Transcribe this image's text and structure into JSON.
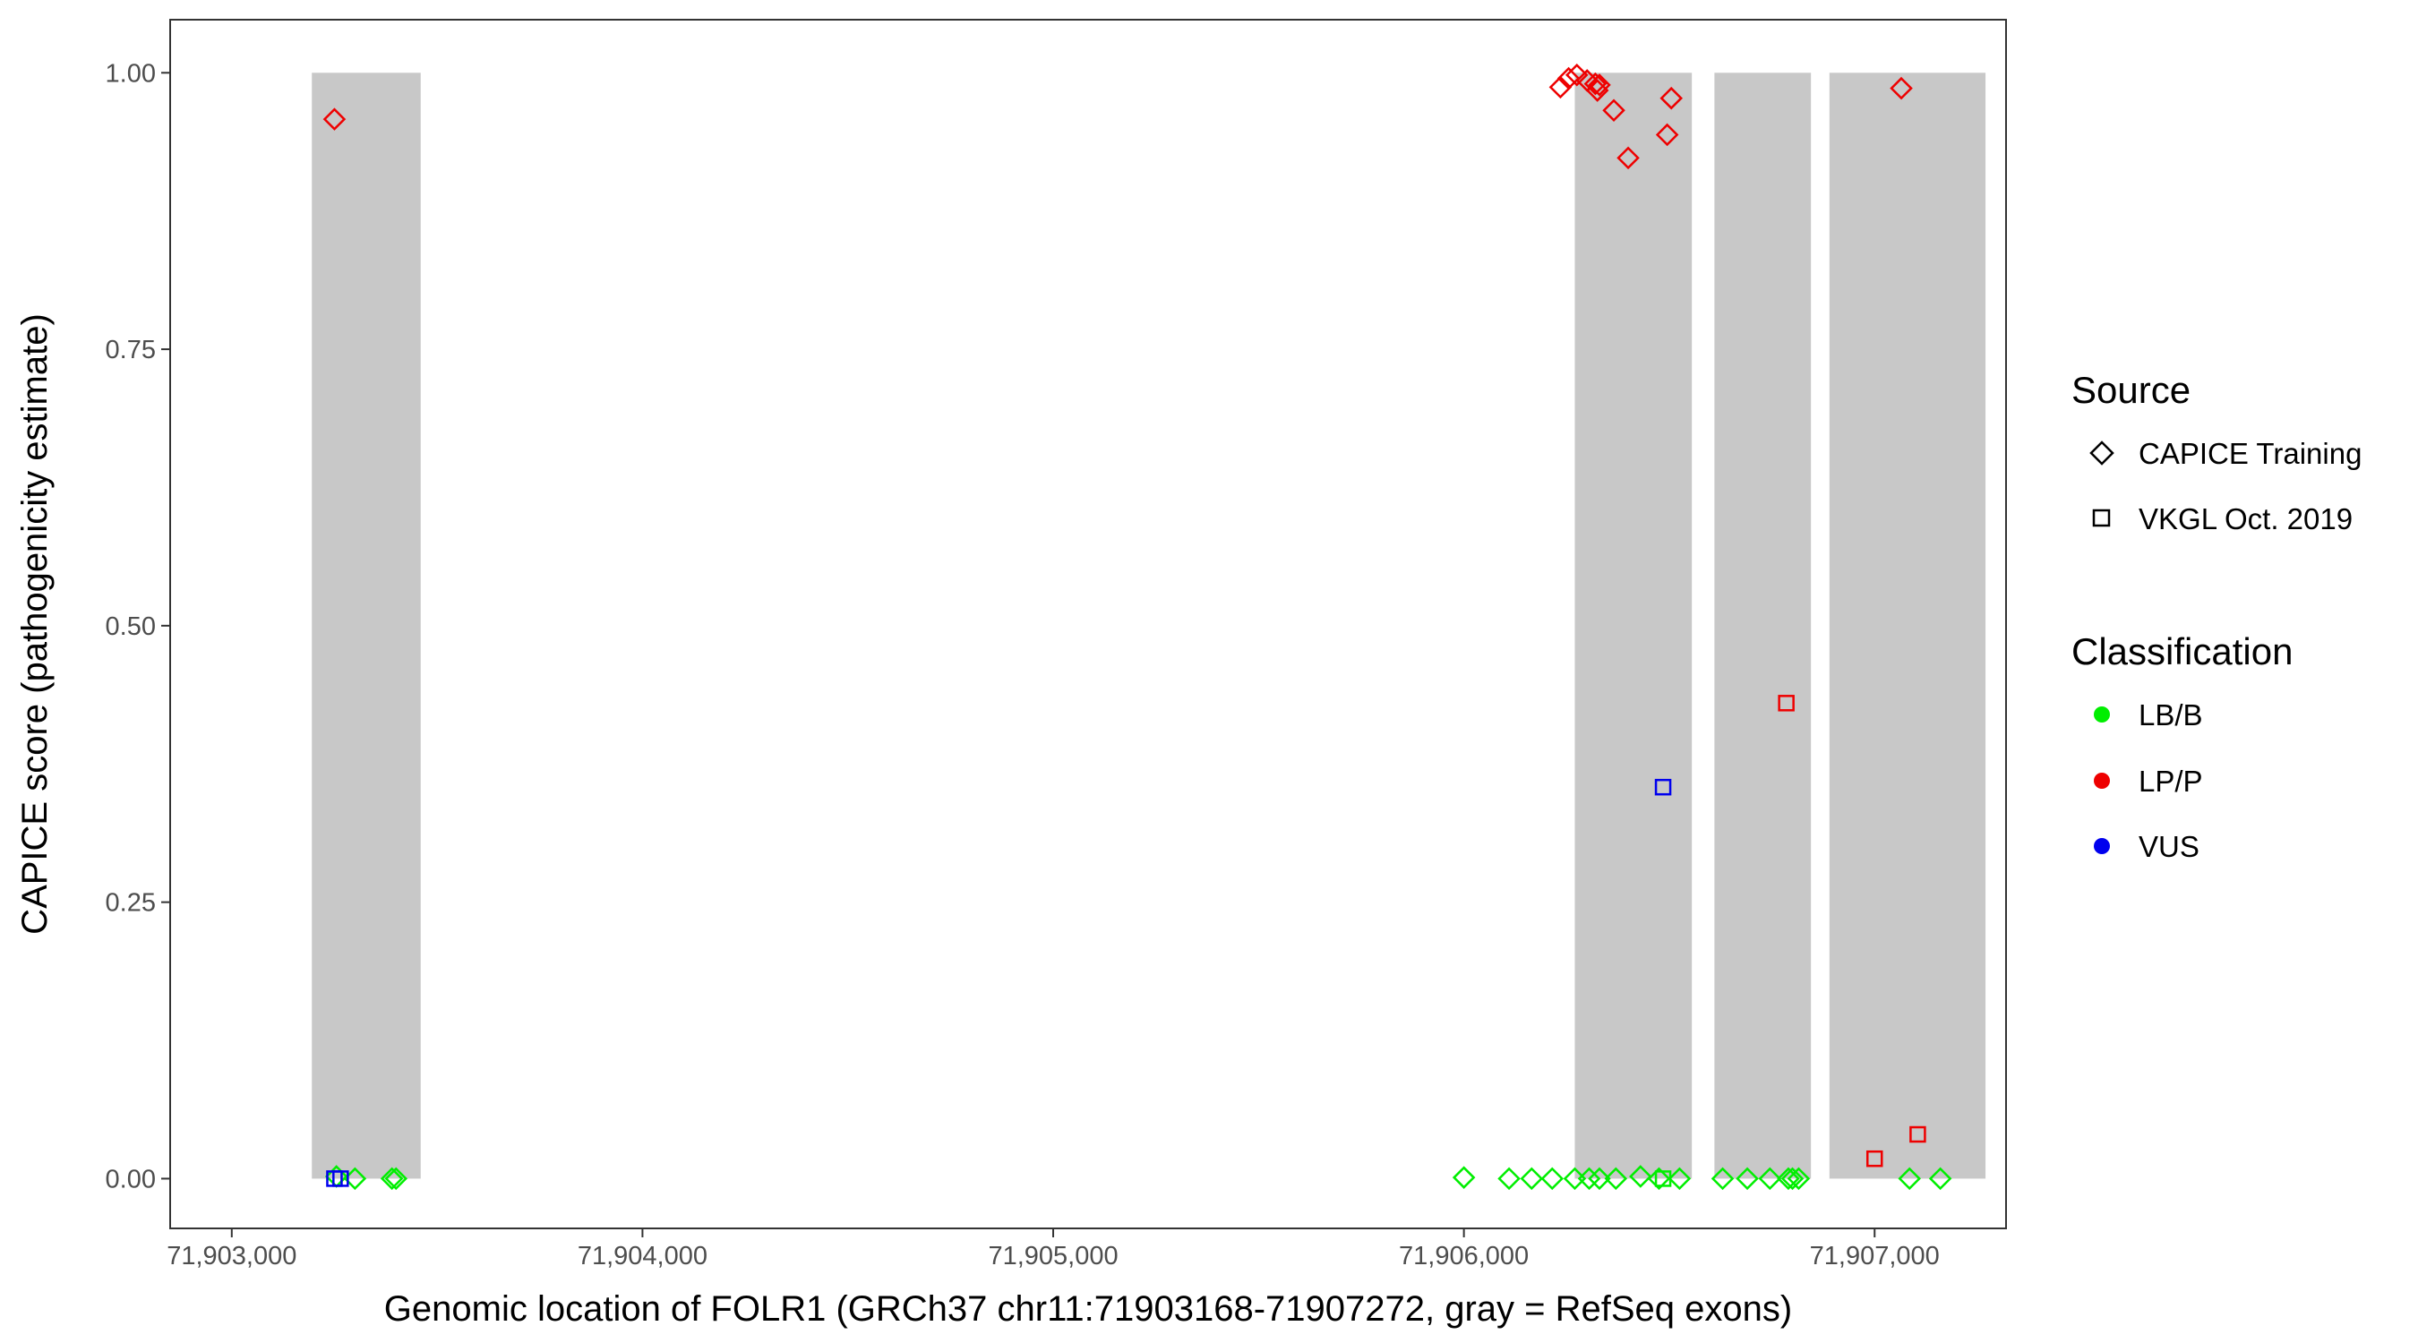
{
  "chart_data": {
    "type": "scatter",
    "title": "",
    "xlabel": "Genomic location of FOLR1 (GRCh37 chr11:71903168-71907272, gray = RefSeq exons)",
    "ylabel": "CAPICE score (pathogenicity estimate)",
    "xlim": [
      71902850,
      71907320
    ],
    "ylim": [
      -0.045,
      1.048
    ],
    "x_ticks": [
      71903000,
      71904000,
      71905000,
      71906000,
      71907000
    ],
    "x_tick_labels": [
      "71,903,000",
      "71,904,000",
      "71,905,000",
      "71,906,000",
      "71,907,000"
    ],
    "y_ticks": [
      0,
      0.25,
      0.5,
      0.75,
      1.0
    ],
    "y_tick_labels": [
      "0.00",
      "0.25",
      "0.50",
      "0.75",
      "1.00"
    ],
    "grid": false,
    "legend_position": "right",
    "exons": [
      {
        "start": 71903195,
        "end": 71903460
      },
      {
        "start": 71906270,
        "end": 71906555
      },
      {
        "start": 71906610,
        "end": 71906845
      },
      {
        "start": 71906890,
        "end": 71907270
      }
    ],
    "exon_color": "#c8c8c8",
    "legend": {
      "source_title": "Source",
      "source_items": [
        {
          "label": "CAPICE Training",
          "shape": "diamond"
        },
        {
          "label": "VKGL Oct. 2019",
          "shape": "square"
        }
      ],
      "class_title": "Classification",
      "class_items": [
        {
          "label": "LB/B",
          "color": "#00ee00"
        },
        {
          "label": "LP/P",
          "color": "#ee0000"
        },
        {
          "label": "VUS",
          "color": "#0000ee"
        }
      ]
    },
    "series": [
      {
        "source": "CAPICE Training",
        "classification": "LP/P",
        "shape": "diamond",
        "color": "#ee0000",
        "x": [
          71903250,
          71906235,
          71906255,
          71906275,
          71906300,
          71906320,
          71906325,
          71906330,
          71906365,
          71906400,
          71906495,
          71906505,
          71907065
        ],
        "y": [
          0.958,
          0.987,
          0.995,
          0.998,
          0.993,
          0.99,
          0.984,
          0.989,
          0.966,
          0.923,
          0.944,
          0.977,
          0.986
        ]
      },
      {
        "source": "CAPICE Training",
        "classification": "LB/B",
        "shape": "diamond",
        "color": "#00ee00",
        "x": [
          71903255,
          71903300,
          71903390,
          71903400,
          71906000,
          71906110,
          71906165,
          71906215,
          71906270,
          71906305,
          71906330,
          71906370,
          71906430,
          71906475,
          71906525,
          71906630,
          71906690,
          71906745,
          71906790,
          71906800,
          71906815,
          71907085,
          71907160
        ],
        "y": [
          0.002,
          0.0,
          0.0,
          0.0,
          0.001,
          0.0,
          0.0,
          0.0,
          0.0,
          0.0,
          0.0,
          0.0,
          0.002,
          0.0,
          0.0,
          0.0,
          0.0,
          0.0,
          0.0,
          0.0,
          0.0,
          0.0,
          0.0
        ]
      },
      {
        "source": "VKGL Oct. 2019",
        "classification": "VUS",
        "shape": "square",
        "color": "#0000ee",
        "x": [
          71903250,
          71903265,
          71906485
        ],
        "y": [
          0.0,
          0.0,
          0.354
        ]
      },
      {
        "source": "VKGL Oct. 2019",
        "classification": "LB/B",
        "shape": "square",
        "color": "#00ee00",
        "x": [
          71906485
        ],
        "y": [
          0.0
        ]
      },
      {
        "source": "VKGL Oct. 2019",
        "classification": "LP/P",
        "shape": "square",
        "color": "#ee0000",
        "x": [
          71906785,
          71907000,
          71907105
        ],
        "y": [
          0.43,
          0.018,
          0.04
        ]
      }
    ]
  }
}
